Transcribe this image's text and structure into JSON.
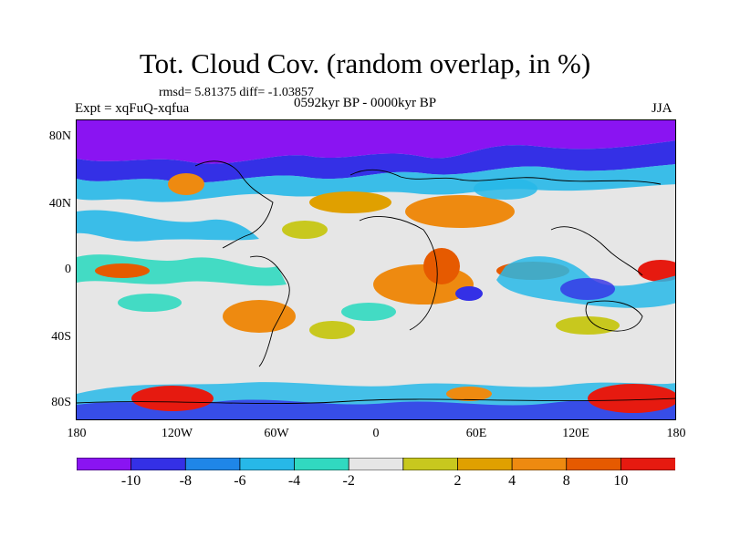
{
  "title": "Tot. Cloud Cov. (random overlap, in %)",
  "stats": "rmsd= 5.81375 diff= -1.03857",
  "expt": "Expt = xqFuQ-xqfua",
  "period": "0592kyr BP - 0000kyr BP",
  "season": "JJA",
  "lat_labels": [
    "80N",
    "40N",
    "0",
    "40S",
    "80S"
  ],
  "lon_labels": [
    "180",
    "120W",
    "60W",
    "0",
    "60E",
    "120E",
    "180"
  ],
  "colorbar": {
    "colors": [
      "#8a14f2",
      "#3430e6",
      "#1f86e8",
      "#27b8e8",
      "#31d9c0",
      "#e6e6e6",
      "#c8c81e",
      "#e0a000",
      "#ee8a10",
      "#e65a00",
      "#e61a10"
    ],
    "labels": [
      "-10",
      "-8",
      "-6",
      "-4",
      "-2",
      "2",
      "4",
      "8",
      "10"
    ]
  },
  "colors": {
    "land_outline": "#000000",
    "background": "#e6e6e6"
  }
}
